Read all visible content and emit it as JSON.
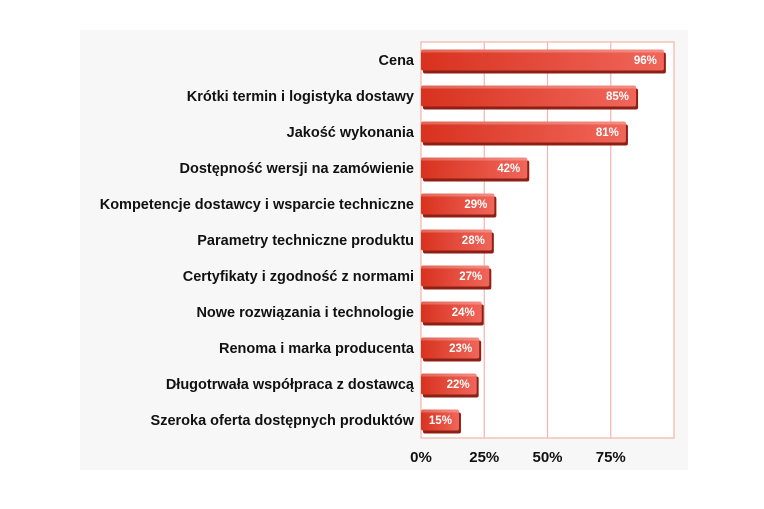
{
  "chart_data": {
    "type": "bar",
    "orientation": "horizontal",
    "categories": [
      "Cena",
      "Krótki termin i logistyka dostawy",
      "Jakość wykonania",
      "Dostępność wersji na zamówienie",
      "Kompetencje dostawcy i wsparcie techniczne",
      "Parametry techniczne produktu",
      "Certyfikaty i zgodność z normami",
      "Nowe rozwiązania i technologie",
      "Renoma i marka producenta",
      "Długotrwała współpraca z dostawcą",
      "Szeroka oferta dostępnych produktów"
    ],
    "values": [
      96,
      85,
      81,
      42,
      29,
      28,
      27,
      24,
      23,
      22,
      15
    ],
    "value_labels": [
      "96%",
      "85%",
      "81%",
      "42%",
      "29%",
      "28%",
      "27%",
      "24%",
      "23%",
      "22%",
      "15%"
    ],
    "x_ticks": [
      0,
      25,
      50,
      75
    ],
    "x_tick_labels": [
      "0%",
      "25%",
      "50%",
      "75%"
    ],
    "xlim": [
      0,
      100
    ],
    "grid": true,
    "legend": false,
    "title": "",
    "xlabel": "",
    "ylabel": "",
    "colors": {
      "bar_light": "#f0665a",
      "bar_dark": "#d8321f",
      "bar_shadow": "#8e1f14",
      "gridline": "#f4b3ad",
      "plot_background": "#ffffff",
      "panel_background": "#f7f7f7"
    }
  }
}
